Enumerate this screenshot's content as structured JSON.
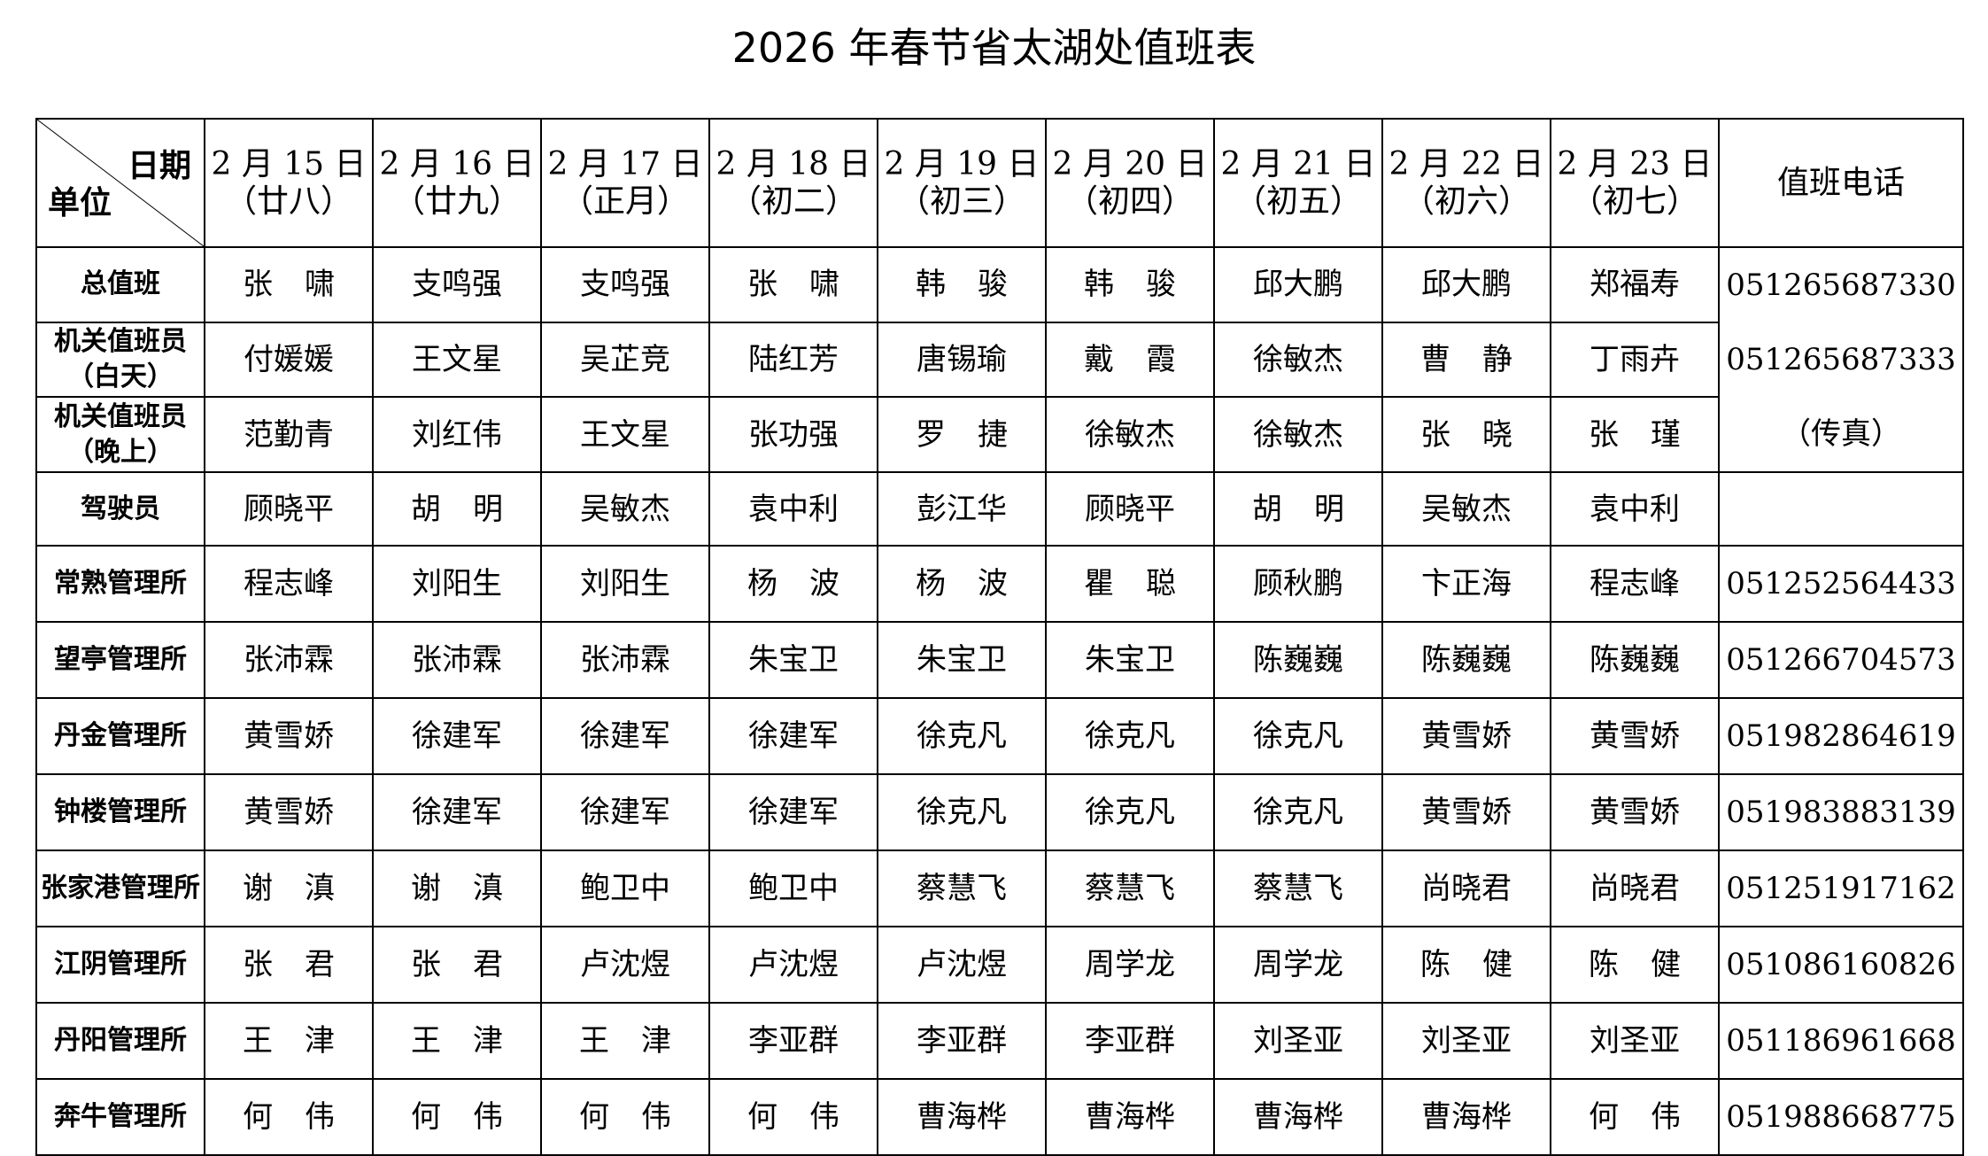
{
  "title": "2026 年春节省太湖处值班表",
  "header": {
    "corner_date": "日期",
    "corner_unit": "单位",
    "dates": [
      {
        "date": "2 月 15 日",
        "lunar": "（廿八）"
      },
      {
        "date": "2 月 16 日",
        "lunar": "（廿九）"
      },
      {
        "date": "2 月 17 日",
        "lunar": "（正月）"
      },
      {
        "date": "2 月 18 日",
        "lunar": "（初二）"
      },
      {
        "date": "2 月 19 日",
        "lunar": "（初三）"
      },
      {
        "date": "2 月 20 日",
        "lunar": "（初四）"
      },
      {
        "date": "2 月 21 日",
        "lunar": "（初五）"
      },
      {
        "date": "2 月 22 日",
        "lunar": "（初六）"
      },
      {
        "date": "2 月 23 日",
        "lunar": "（初七）"
      }
    ],
    "phone": "值班电话"
  },
  "rows": [
    {
      "unit": "总值班",
      "names": [
        "张啸",
        "支鸣强",
        "支鸣强",
        "张啸",
        "韩骏",
        "韩骏",
        "邱大鹏",
        "邱大鹏",
        "郑福寿"
      ]
    },
    {
      "unit": "机关值班员（白天）",
      "names": [
        "付媛媛",
        "王文星",
        "吴芷竞",
        "陆红芳",
        "唐锡瑜",
        "戴霞",
        "徐敏杰",
        "曹静",
        "丁雨卉"
      ]
    },
    {
      "unit": "机关值班员（晚上）",
      "names": [
        "范勤青",
        "刘红伟",
        "王文星",
        "张功强",
        "罗捷",
        "徐敏杰",
        "徐敏杰",
        "张晓",
        "张瑾"
      ]
    },
    {
      "unit": "驾驶员",
      "names": [
        "顾晓平",
        "胡明",
        "吴敏杰",
        "袁中利",
        "彭江华",
        "顾晓平",
        "胡明",
        "吴敏杰",
        "袁中利"
      ]
    },
    {
      "unit": "常熟管理所",
      "names": [
        "程志峰",
        "刘阳生",
        "刘阳生",
        "杨波",
        "杨波",
        "瞿聪",
        "顾秋鹏",
        "卞正海",
        "程志峰"
      ],
      "phone": "051252564433"
    },
    {
      "unit": "望亭管理所",
      "names": [
        "张沛霖",
        "张沛霖",
        "张沛霖",
        "朱宝卫",
        "朱宝卫",
        "朱宝卫",
        "陈巍巍",
        "陈巍巍",
        "陈巍巍"
      ],
      "phone": "051266704573"
    },
    {
      "unit": "丹金管理所",
      "names": [
        "黄雪娇",
        "徐建军",
        "徐建军",
        "徐建军",
        "徐克凡",
        "徐克凡",
        "徐克凡",
        "黄雪娇",
        "黄雪娇"
      ],
      "phone": "051982864619"
    },
    {
      "unit": "钟楼管理所",
      "names": [
        "黄雪娇",
        "徐建军",
        "徐建军",
        "徐建军",
        "徐克凡",
        "徐克凡",
        "徐克凡",
        "黄雪娇",
        "黄雪娇"
      ],
      "phone": "051983883139"
    },
    {
      "unit": "张家港管理所",
      "names": [
        "谢滇",
        "谢滇",
        "鲍卫中",
        "鲍卫中",
        "蔡慧飞",
        "蔡慧飞",
        "蔡慧飞",
        "尚晓君",
        "尚晓君"
      ],
      "phone": "051251917162"
    },
    {
      "unit": "江阴管理所",
      "names": [
        "张君",
        "张君",
        "卢沈煜",
        "卢沈煜",
        "卢沈煜",
        "周学龙",
        "周学龙",
        "陈健",
        "陈健"
      ],
      "phone": "051086160826"
    },
    {
      "unit": "丹阳管理所",
      "names": [
        "王津",
        "王津",
        "王津",
        "李亚群",
        "李亚群",
        "李亚群",
        "刘圣亚",
        "刘圣亚",
        "刘圣亚"
      ],
      "phone": "051186961668"
    },
    {
      "unit": "奔牛管理所",
      "names": [
        "何伟",
        "何伟",
        "何伟",
        "何伟",
        "曹海桦",
        "曹海桦",
        "曹海桦",
        "曹海桦",
        "何伟"
      ],
      "phone": "051988668775"
    }
  ],
  "office_phones": [
    "051265687330",
    "051265687333",
    "（传真）"
  ]
}
